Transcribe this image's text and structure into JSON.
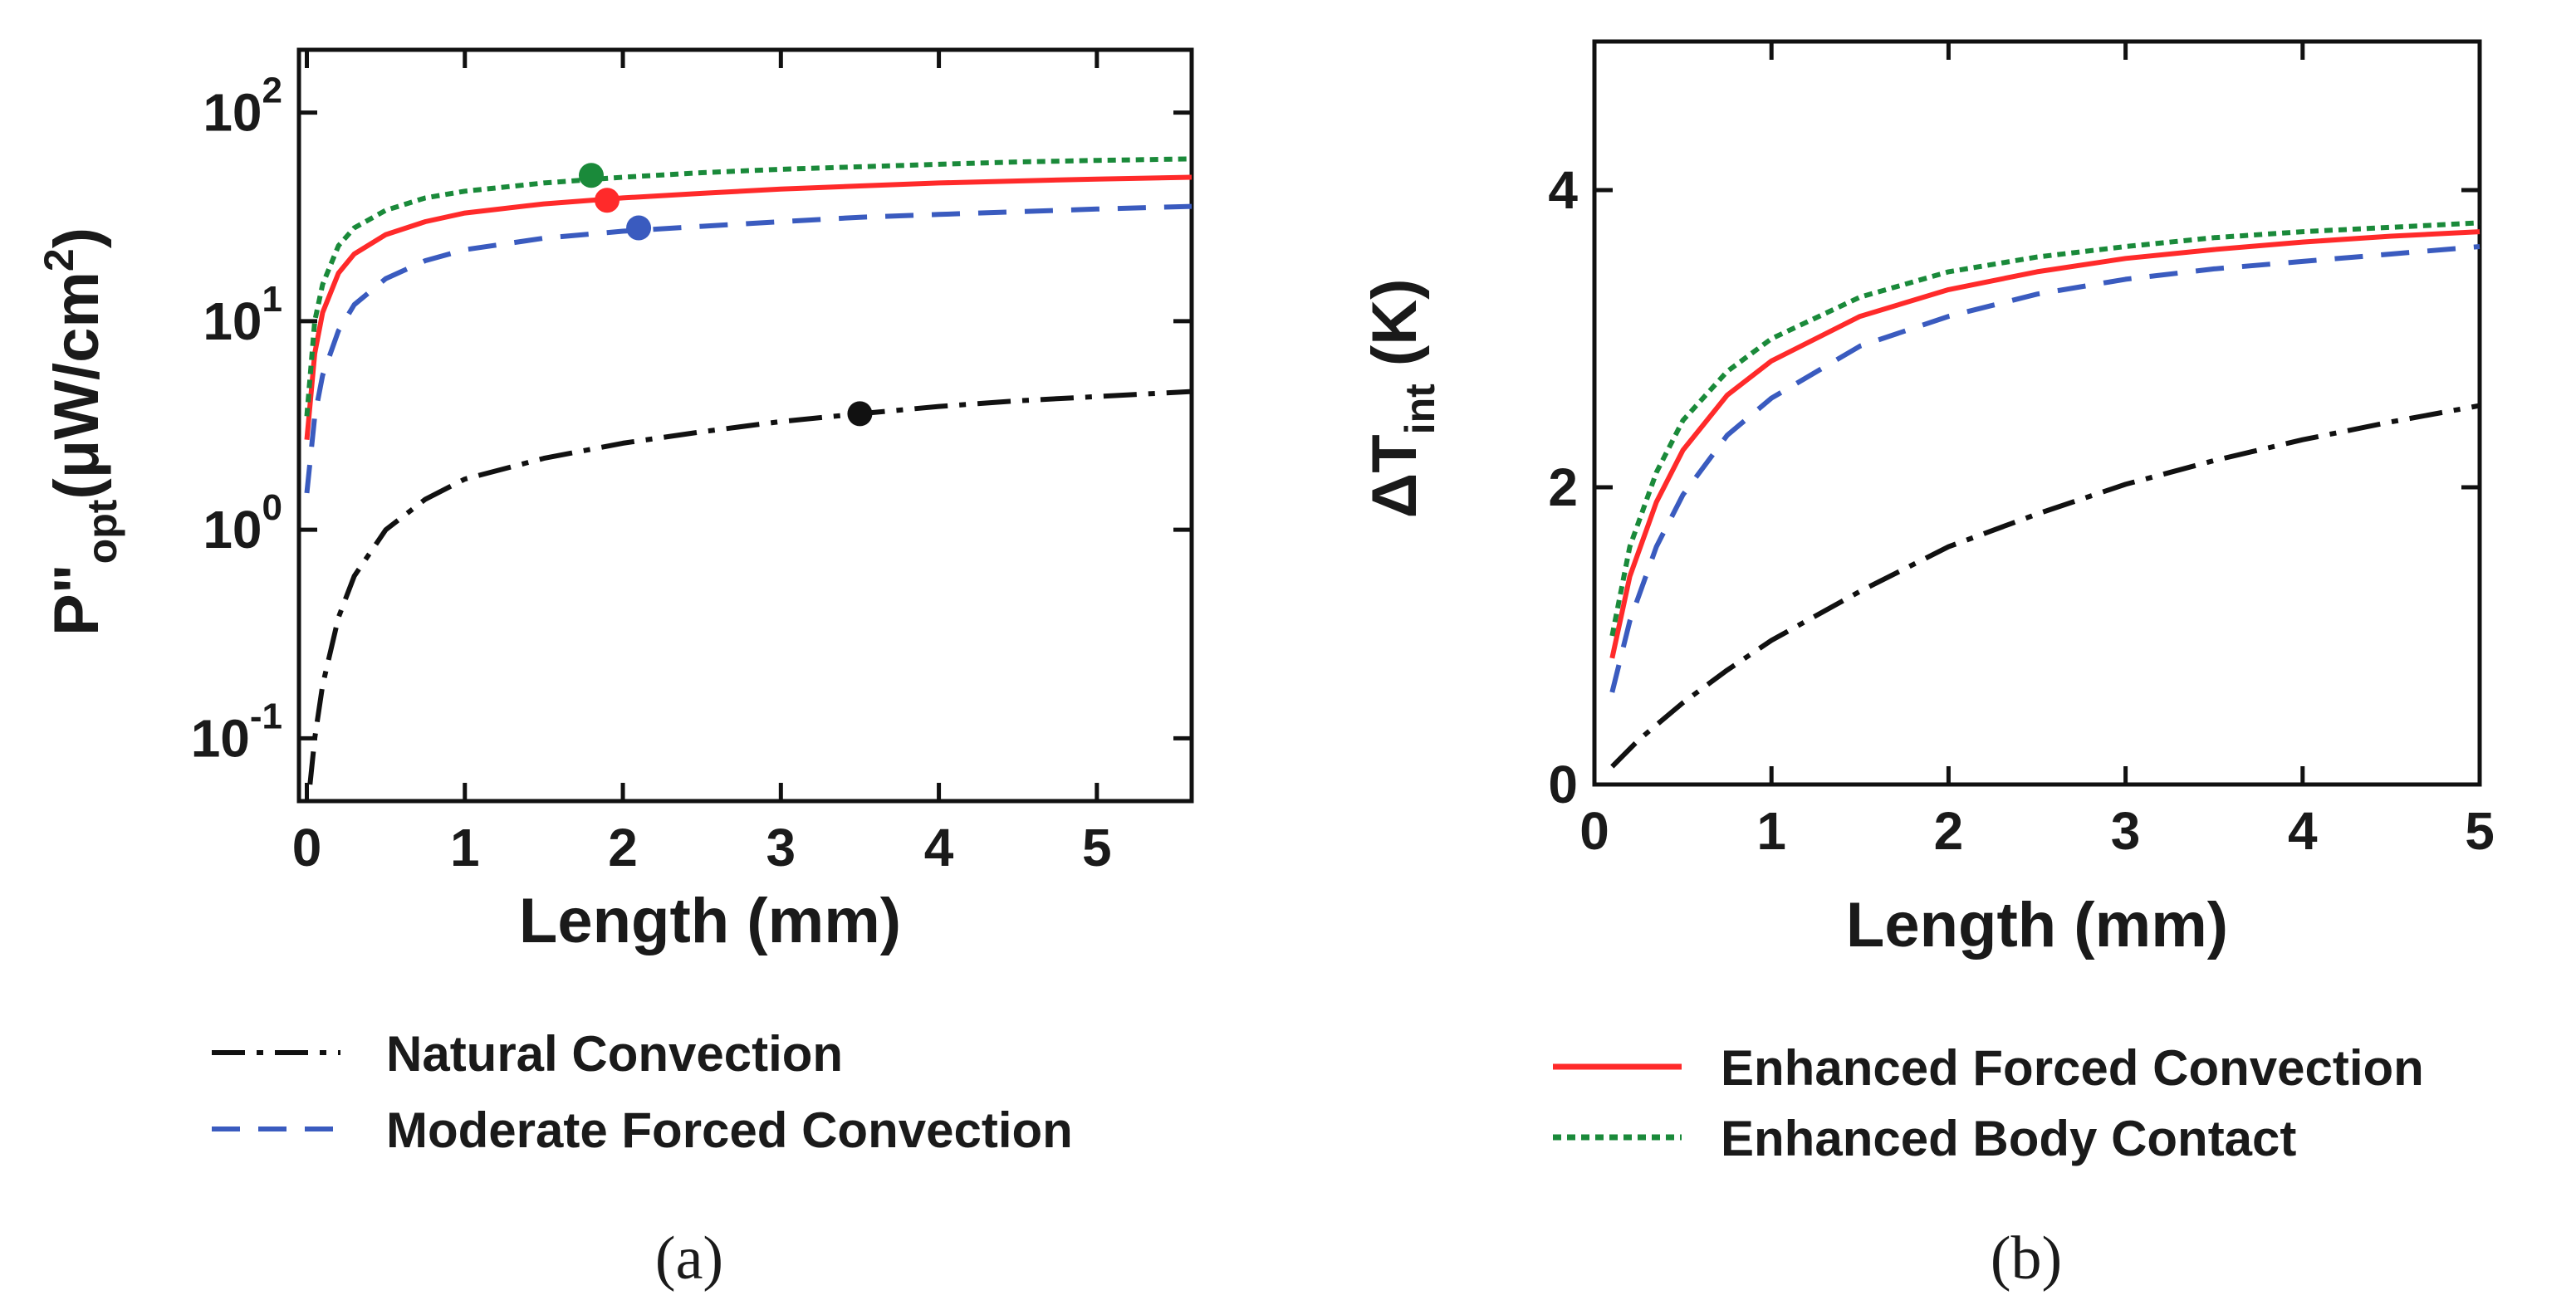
{
  "chart_data": [
    {
      "type": "line",
      "panel_label": "(a)",
      "xlabel": "Length (mm)",
      "ylabel": {
        "main": "P\"",
        "sub": "opt",
        "unit_pre": "(μW/cm",
        "unit_sup": "2",
        "unit_post": ")"
      },
      "yscale": "log",
      "xlim": [
        -0.05,
        5.6
      ],
      "ylim": [
        0.05,
        200
      ],
      "xticks": [
        "0",
        "1",
        "2",
        "3",
        "4",
        "5"
      ],
      "yticks": [
        {
          "value": 0.1,
          "base": "10",
          "exp": "-1"
        },
        {
          "value": 1,
          "base": "10",
          "exp": "0"
        },
        {
          "value": 10,
          "base": "10",
          "exp": "1"
        },
        {
          "value": 100,
          "base": "10",
          "exp": "2"
        }
      ],
      "series": [
        {
          "name": "Natural Convection",
          "color": "#111111",
          "dash": "dashdot",
          "x": [
            0.02,
            0.05,
            0.1,
            0.2,
            0.3,
            0.5,
            0.75,
            1.0,
            1.5,
            2.0,
            2.5,
            3.0,
            3.5,
            4.0,
            4.5,
            5.0,
            5.6
          ],
          "y": [
            0.06,
            0.1,
            0.18,
            0.38,
            0.6,
            1.0,
            1.4,
            1.75,
            2.2,
            2.6,
            2.95,
            3.3,
            3.6,
            3.9,
            4.15,
            4.35,
            4.6
          ],
          "marker": {
            "x": 3.5,
            "y": 3.6
          }
        },
        {
          "name": "Moderate Forced Convection",
          "color": "#3a5bbf",
          "dash": "dashed",
          "x": [
            0.0,
            0.05,
            0.1,
            0.2,
            0.3,
            0.5,
            0.75,
            1.0,
            1.5,
            2.0,
            2.5,
            3.0,
            3.5,
            4.0,
            4.5,
            5.0,
            5.6
          ],
          "y": [
            1.5,
            3.5,
            5.5,
            9.0,
            12.0,
            16.0,
            19.5,
            22.0,
            25.0,
            27.0,
            28.5,
            30.0,
            31.5,
            32.5,
            33.5,
            34.5,
            35.5
          ],
          "marker": {
            "x": 2.1,
            "y": 28
          }
        },
        {
          "name": "Enhanced Forced Convection",
          "color": "#ff2a2a",
          "dash": "solid",
          "x": [
            0.0,
            0.05,
            0.1,
            0.2,
            0.3,
            0.5,
            0.75,
            1.0,
            1.5,
            2.0,
            2.5,
            3.0,
            3.5,
            4.0,
            4.5,
            5.0,
            5.6
          ],
          "y": [
            2.7,
            7.0,
            11.0,
            17.0,
            21.0,
            26.0,
            30.0,
            33.0,
            36.5,
            39.0,
            41.0,
            43.0,
            44.5,
            46.0,
            47.0,
            48.0,
            49.0
          ],
          "marker": {
            "x": 1.9,
            "y": 38
          }
        },
        {
          "name": "Enhanced Body Contact",
          "color": "#1a8a3a",
          "dash": "dotted",
          "x": [
            0.0,
            0.05,
            0.1,
            0.2,
            0.3,
            0.5,
            0.75,
            1.0,
            1.5,
            2.0,
            2.5,
            3.0,
            3.5,
            4.0,
            4.5,
            5.0,
            5.6
          ],
          "y": [
            3.5,
            10.0,
            15.0,
            23.0,
            28.0,
            34.0,
            39.0,
            42.0,
            46.0,
            49.0,
            51.5,
            53.5,
            55.0,
            56.5,
            58.0,
            59.0,
            60.0
          ],
          "marker": {
            "x": 1.8,
            "y": 50
          }
        }
      ]
    },
    {
      "type": "line",
      "panel_label": "(b)",
      "xlabel": "Length (mm)",
      "ylabel": {
        "main": "ΔT",
        "sub": "int",
        "unit_post": " (K)"
      },
      "yscale": "linear",
      "xlim": [
        0,
        5
      ],
      "ylim": [
        0,
        5
      ],
      "xticks": [
        "0",
        "1",
        "2",
        "3",
        "4",
        "5"
      ],
      "yticks": [
        {
          "value": 0,
          "label": "0"
        },
        {
          "value": 2,
          "label": "2"
        },
        {
          "value": 4,
          "label": "4"
        }
      ],
      "series": [
        {
          "name": "Natural Convection",
          "color": "#111111",
          "dash": "dashdot",
          "x": [
            0.1,
            0.25,
            0.5,
            0.75,
            1.0,
            1.5,
            2.0,
            2.5,
            3.0,
            3.5,
            4.0,
            4.5,
            5.0
          ],
          "y": [
            0.12,
            0.3,
            0.55,
            0.77,
            0.97,
            1.3,
            1.6,
            1.82,
            2.02,
            2.18,
            2.32,
            2.44,
            2.55
          ]
        },
        {
          "name": "Moderate Forced Convection",
          "color": "#3a5bbf",
          "dash": "dashed",
          "x": [
            0.1,
            0.2,
            0.35,
            0.5,
            0.75,
            1.0,
            1.5,
            2.0,
            2.5,
            3.0,
            3.5,
            4.0,
            4.5,
            5.0
          ],
          "y": [
            0.62,
            1.1,
            1.6,
            1.95,
            2.35,
            2.6,
            2.95,
            3.15,
            3.3,
            3.4,
            3.47,
            3.52,
            3.57,
            3.62
          ]
        },
        {
          "name": "Enhanced Forced Convection",
          "color": "#ff2a2a",
          "dash": "solid",
          "x": [
            0.1,
            0.2,
            0.35,
            0.5,
            0.75,
            1.0,
            1.5,
            2.0,
            2.5,
            3.0,
            3.5,
            4.0,
            4.5,
            5.0
          ],
          "y": [
            0.85,
            1.4,
            1.9,
            2.25,
            2.62,
            2.85,
            3.15,
            3.33,
            3.45,
            3.54,
            3.6,
            3.65,
            3.69,
            3.72
          ]
        },
        {
          "name": "Enhanced Body Contact",
          "color": "#1a8a3a",
          "dash": "dotted",
          "x": [
            0.1,
            0.2,
            0.35,
            0.5,
            0.75,
            1.0,
            1.5,
            2.0,
            2.5,
            3.0,
            3.5,
            4.0,
            4.5,
            5.0
          ],
          "y": [
            1.0,
            1.6,
            2.1,
            2.45,
            2.78,
            3.0,
            3.28,
            3.45,
            3.55,
            3.62,
            3.68,
            3.72,
            3.75,
            3.78
          ]
        }
      ]
    }
  ],
  "legend_left": [
    "Natural Convection",
    "Moderate Forced Convection"
  ],
  "legend_right": [
    "Enhanced Forced Convection",
    "Enhanced Body Contact"
  ]
}
